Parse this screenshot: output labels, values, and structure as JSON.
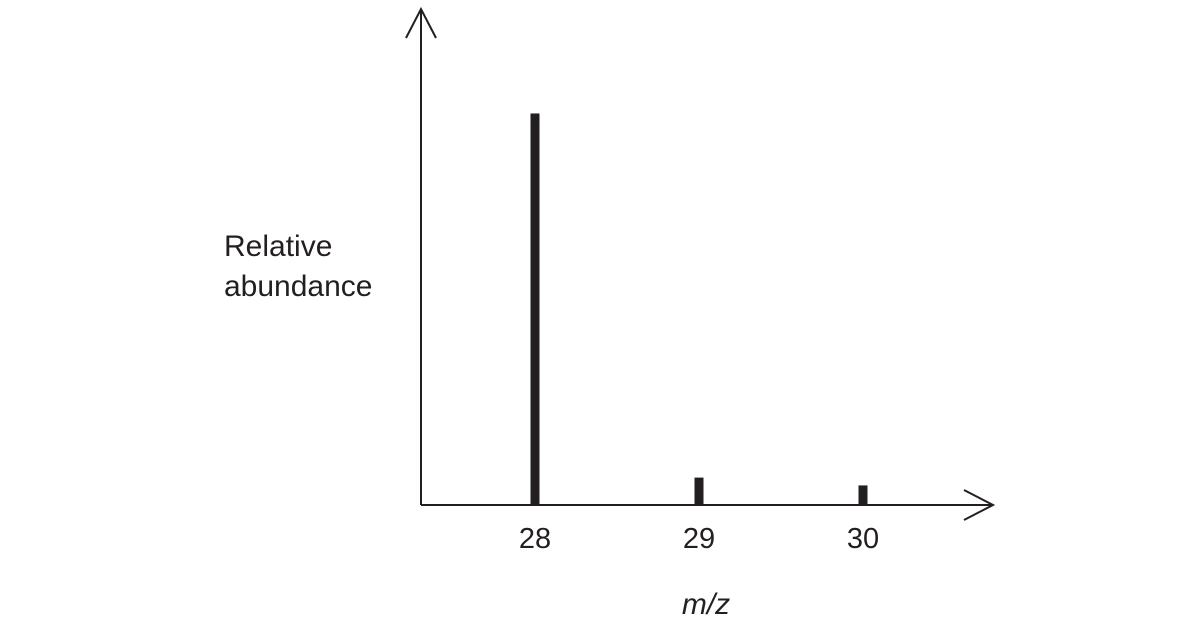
{
  "chart_data": {
    "type": "bar",
    "categories": [
      "28",
      "29",
      "30"
    ],
    "values": [
      100,
      7,
      5
    ],
    "ylabel": [
      "Relative",
      "abundance"
    ],
    "xlabel": "m/z",
    "ylim": [
      0,
      118
    ],
    "grid": false,
    "legend": "none",
    "colors": {
      "bar": "#231f20",
      "axis": "#231f20",
      "text": "#231f20"
    }
  }
}
